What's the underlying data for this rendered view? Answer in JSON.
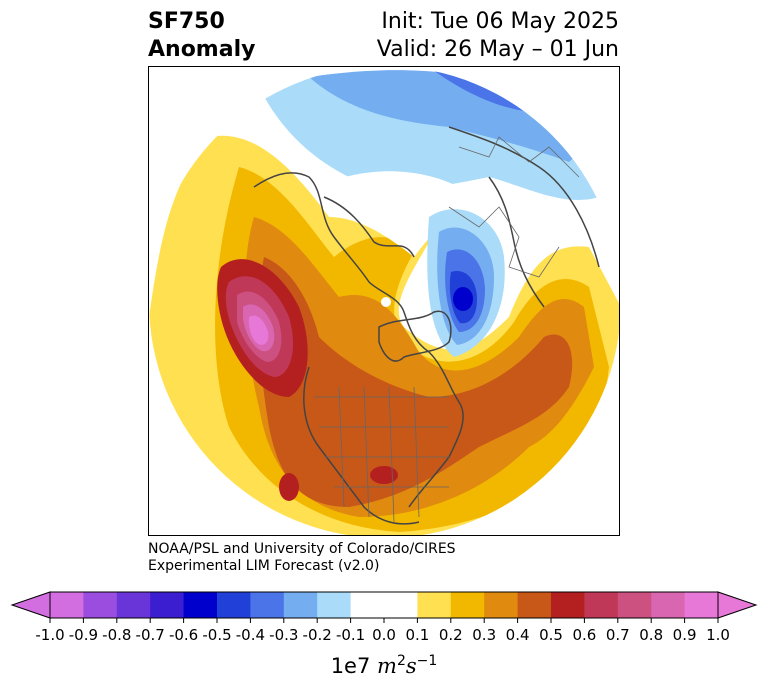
{
  "title": {
    "left_line1": "SF750",
    "left_line2": "Anomaly",
    "right_line1": "Init: Tue 06 May 2025",
    "right_line2": "Valid: 26 May – 01 Jun"
  },
  "credit": {
    "line1": "NOAA/PSL and University of Colorado/CIRES",
    "line2": "Experimental LIM Forecast (v2.0)"
  },
  "colorbar": {
    "ticks": [
      "-1.0",
      "-0.9",
      "-0.8",
      "-0.7",
      "-0.6",
      "-0.5",
      "-0.4",
      "-0.3",
      "-0.2",
      "-0.1",
      "0.0",
      "0.1",
      "0.2",
      "0.3",
      "0.4",
      "0.5",
      "0.6",
      "0.7",
      "0.8",
      "0.9",
      "1.0"
    ],
    "colors": [
      "#d36ee0",
      "#9b4de0",
      "#6a35d8",
      "#3a1ed0",
      "#0000cc",
      "#2040d8",
      "#4a74e8",
      "#74aef0",
      "#aadcfa",
      "#ffffff",
      "#ffffff",
      "#ffe050",
      "#f2b800",
      "#e08a10",
      "#c85818",
      "#b42020",
      "#c03858",
      "#cc5080",
      "#d866b0",
      "#e878d8"
    ],
    "under_color": "#d36ee0",
    "over_color": "#e878d8",
    "units_prefix": "1e7",
    "units_m": "m",
    "units_m_exp": "2",
    "units_s": "s",
    "units_s_exp": "−1"
  }
}
